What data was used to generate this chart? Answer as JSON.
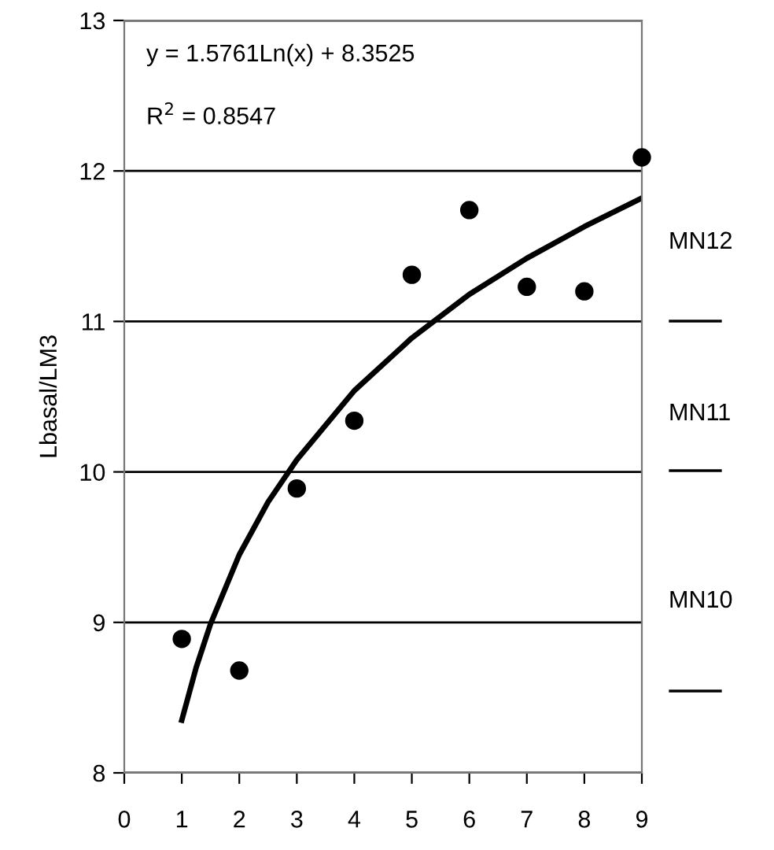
{
  "chart_data": {
    "type": "scatter",
    "ylabel": "Lbasal/LM3",
    "x": [
      1,
      2,
      3,
      4,
      5,
      6,
      7,
      8,
      9
    ],
    "series": [
      {
        "color": "#000000",
        "marker": "circle",
        "values": [
          8.89,
          8.68,
          9.89,
          10.34,
          11.31,
          11.74,
          11.23,
          11.2,
          12.09
        ]
      },
      {
        "type": "line",
        "color": "#000000",
        "marker": "none",
        "line_style": "solid",
        "x": [
          1,
          1.25,
          1.5,
          2,
          2.5,
          3,
          4,
          5,
          6,
          7,
          8,
          9
        ],
        "values": [
          8.35,
          8.7,
          8.99,
          9.45,
          9.8,
          10.08,
          10.54,
          10.89,
          11.18,
          11.42,
          11.63,
          11.82
        ]
      }
    ],
    "xlim": [
      0,
      9
    ],
    "xticks": [
      0,
      1,
      2,
      3,
      4,
      5,
      6,
      7,
      8,
      9
    ],
    "ylim": [
      8,
      13
    ],
    "yticks": [
      8,
      9,
      10,
      11,
      12,
      13
    ],
    "grid": "y",
    "annotations": [
      "y = 1.5761Ln(x) + 8.3525",
      "R$^{2}$ = 0.8547",
      "MN12",
      "MN11",
      "MN10"
    ]
  }
}
